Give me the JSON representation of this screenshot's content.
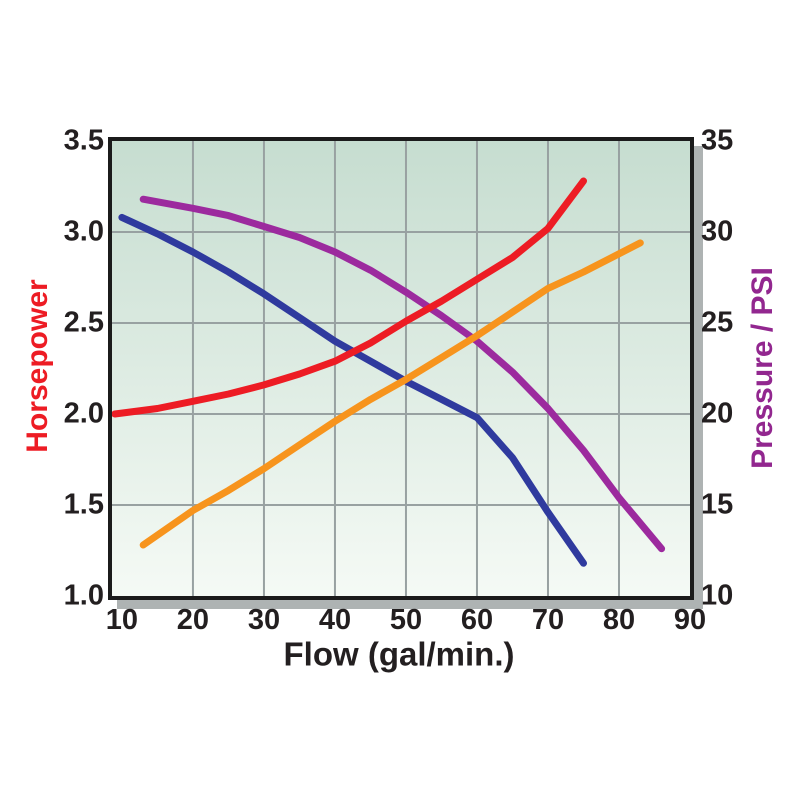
{
  "chart_data": {
    "type": "line",
    "title": "",
    "xlabel": "Flow (gal/min.)",
    "ylabel_left": "Horsepower",
    "ylabel_right": "Pressure / PSI",
    "grid": true,
    "legend": "none",
    "x_axis": {
      "min": 8.6,
      "max": 90,
      "tick_values": [
        10,
        20,
        30,
        40,
        50,
        60,
        70,
        80,
        90
      ],
      "tick_labels": [
        "10",
        "20",
        "30",
        "40",
        "50",
        "60",
        "70",
        "80",
        "90"
      ],
      "gridline_values": [
        20,
        30,
        40,
        50,
        60,
        70,
        80
      ]
    },
    "y_axis_left": {
      "min": 1.0,
      "max": 3.5,
      "tick_values": [
        3.5,
        3.0,
        2.5,
        2.0,
        1.5,
        1.0
      ],
      "tick_labels": [
        "3.5",
        "3.0",
        "2.5",
        "2.0",
        "1.5",
        "1.0"
      ],
      "gridline_values": [
        1.5,
        2.0,
        2.5,
        3.0
      ],
      "color": "#ed1c24"
    },
    "y_axis_right": {
      "min": 10,
      "max": 35,
      "tick_values": [
        35,
        30,
        25,
        20,
        15,
        10
      ],
      "tick_labels": [
        "35",
        "30",
        "25",
        "20",
        "15",
        "10"
      ],
      "color": "#92278f"
    },
    "plot_style": {
      "bg_top": "#c6ddd0",
      "bg_bottom": "#f5faf5",
      "grid_color": "#98a1a1",
      "border_color": "#1b1b1b",
      "shadow_color": "#aeb3b3",
      "line_width": 7
    },
    "series": [
      {
        "name": "purple-pressure-curve",
        "color": "#9c2a9e",
        "axis": "right",
        "points": [
          [
            13,
            31.8
          ],
          [
            20,
            31.3
          ],
          [
            25,
            30.9
          ],
          [
            30,
            30.3
          ],
          [
            35,
            29.7
          ],
          [
            40,
            28.9
          ],
          [
            45,
            27.9
          ],
          [
            50,
            26.7
          ],
          [
            55,
            25.4
          ],
          [
            60,
            24.0
          ],
          [
            65,
            22.3
          ],
          [
            70,
            20.3
          ],
          [
            75,
            18.0
          ],
          [
            80,
            15.4
          ],
          [
            86,
            12.6
          ]
        ]
      },
      {
        "name": "blue-falling-curve",
        "color": "#2f3a9e",
        "axis": "left",
        "points": [
          [
            10,
            3.08
          ],
          [
            15,
            2.99
          ],
          [
            20,
            2.89
          ],
          [
            25,
            2.78
          ],
          [
            30,
            2.66
          ],
          [
            35,
            2.53
          ],
          [
            40,
            2.4
          ],
          [
            45,
            2.29
          ],
          [
            50,
            2.18
          ],
          [
            55,
            2.08
          ],
          [
            60,
            1.98
          ],
          [
            65,
            1.76
          ],
          [
            70,
            1.46
          ],
          [
            75,
            1.18
          ]
        ]
      },
      {
        "name": "orange-rising-curve",
        "color": "#f7941d",
        "axis": "right",
        "points": [
          [
            13,
            12.8
          ],
          [
            20,
            14.7
          ],
          [
            25,
            15.8
          ],
          [
            30,
            17.0
          ],
          [
            35,
            18.3
          ],
          [
            40,
            19.6
          ],
          [
            45,
            20.8
          ],
          [
            50,
            21.9
          ],
          [
            55,
            23.1
          ],
          [
            60,
            24.3
          ],
          [
            65,
            25.6
          ],
          [
            70,
            26.9
          ],
          [
            75,
            27.8
          ],
          [
            83,
            29.4
          ]
        ]
      },
      {
        "name": "red-horsepower-curve",
        "color": "#ed1c24",
        "axis": "left",
        "points": [
          [
            9,
            2.0
          ],
          [
            15,
            2.03
          ],
          [
            20,
            2.07
          ],
          [
            25,
            2.11
          ],
          [
            30,
            2.16
          ],
          [
            35,
            2.22
          ],
          [
            40,
            2.29
          ],
          [
            45,
            2.39
          ],
          [
            50,
            2.51
          ],
          [
            55,
            2.62
          ],
          [
            60,
            2.74
          ],
          [
            65,
            2.86
          ],
          [
            70,
            3.02
          ],
          [
            75,
            3.28
          ]
        ]
      }
    ]
  }
}
